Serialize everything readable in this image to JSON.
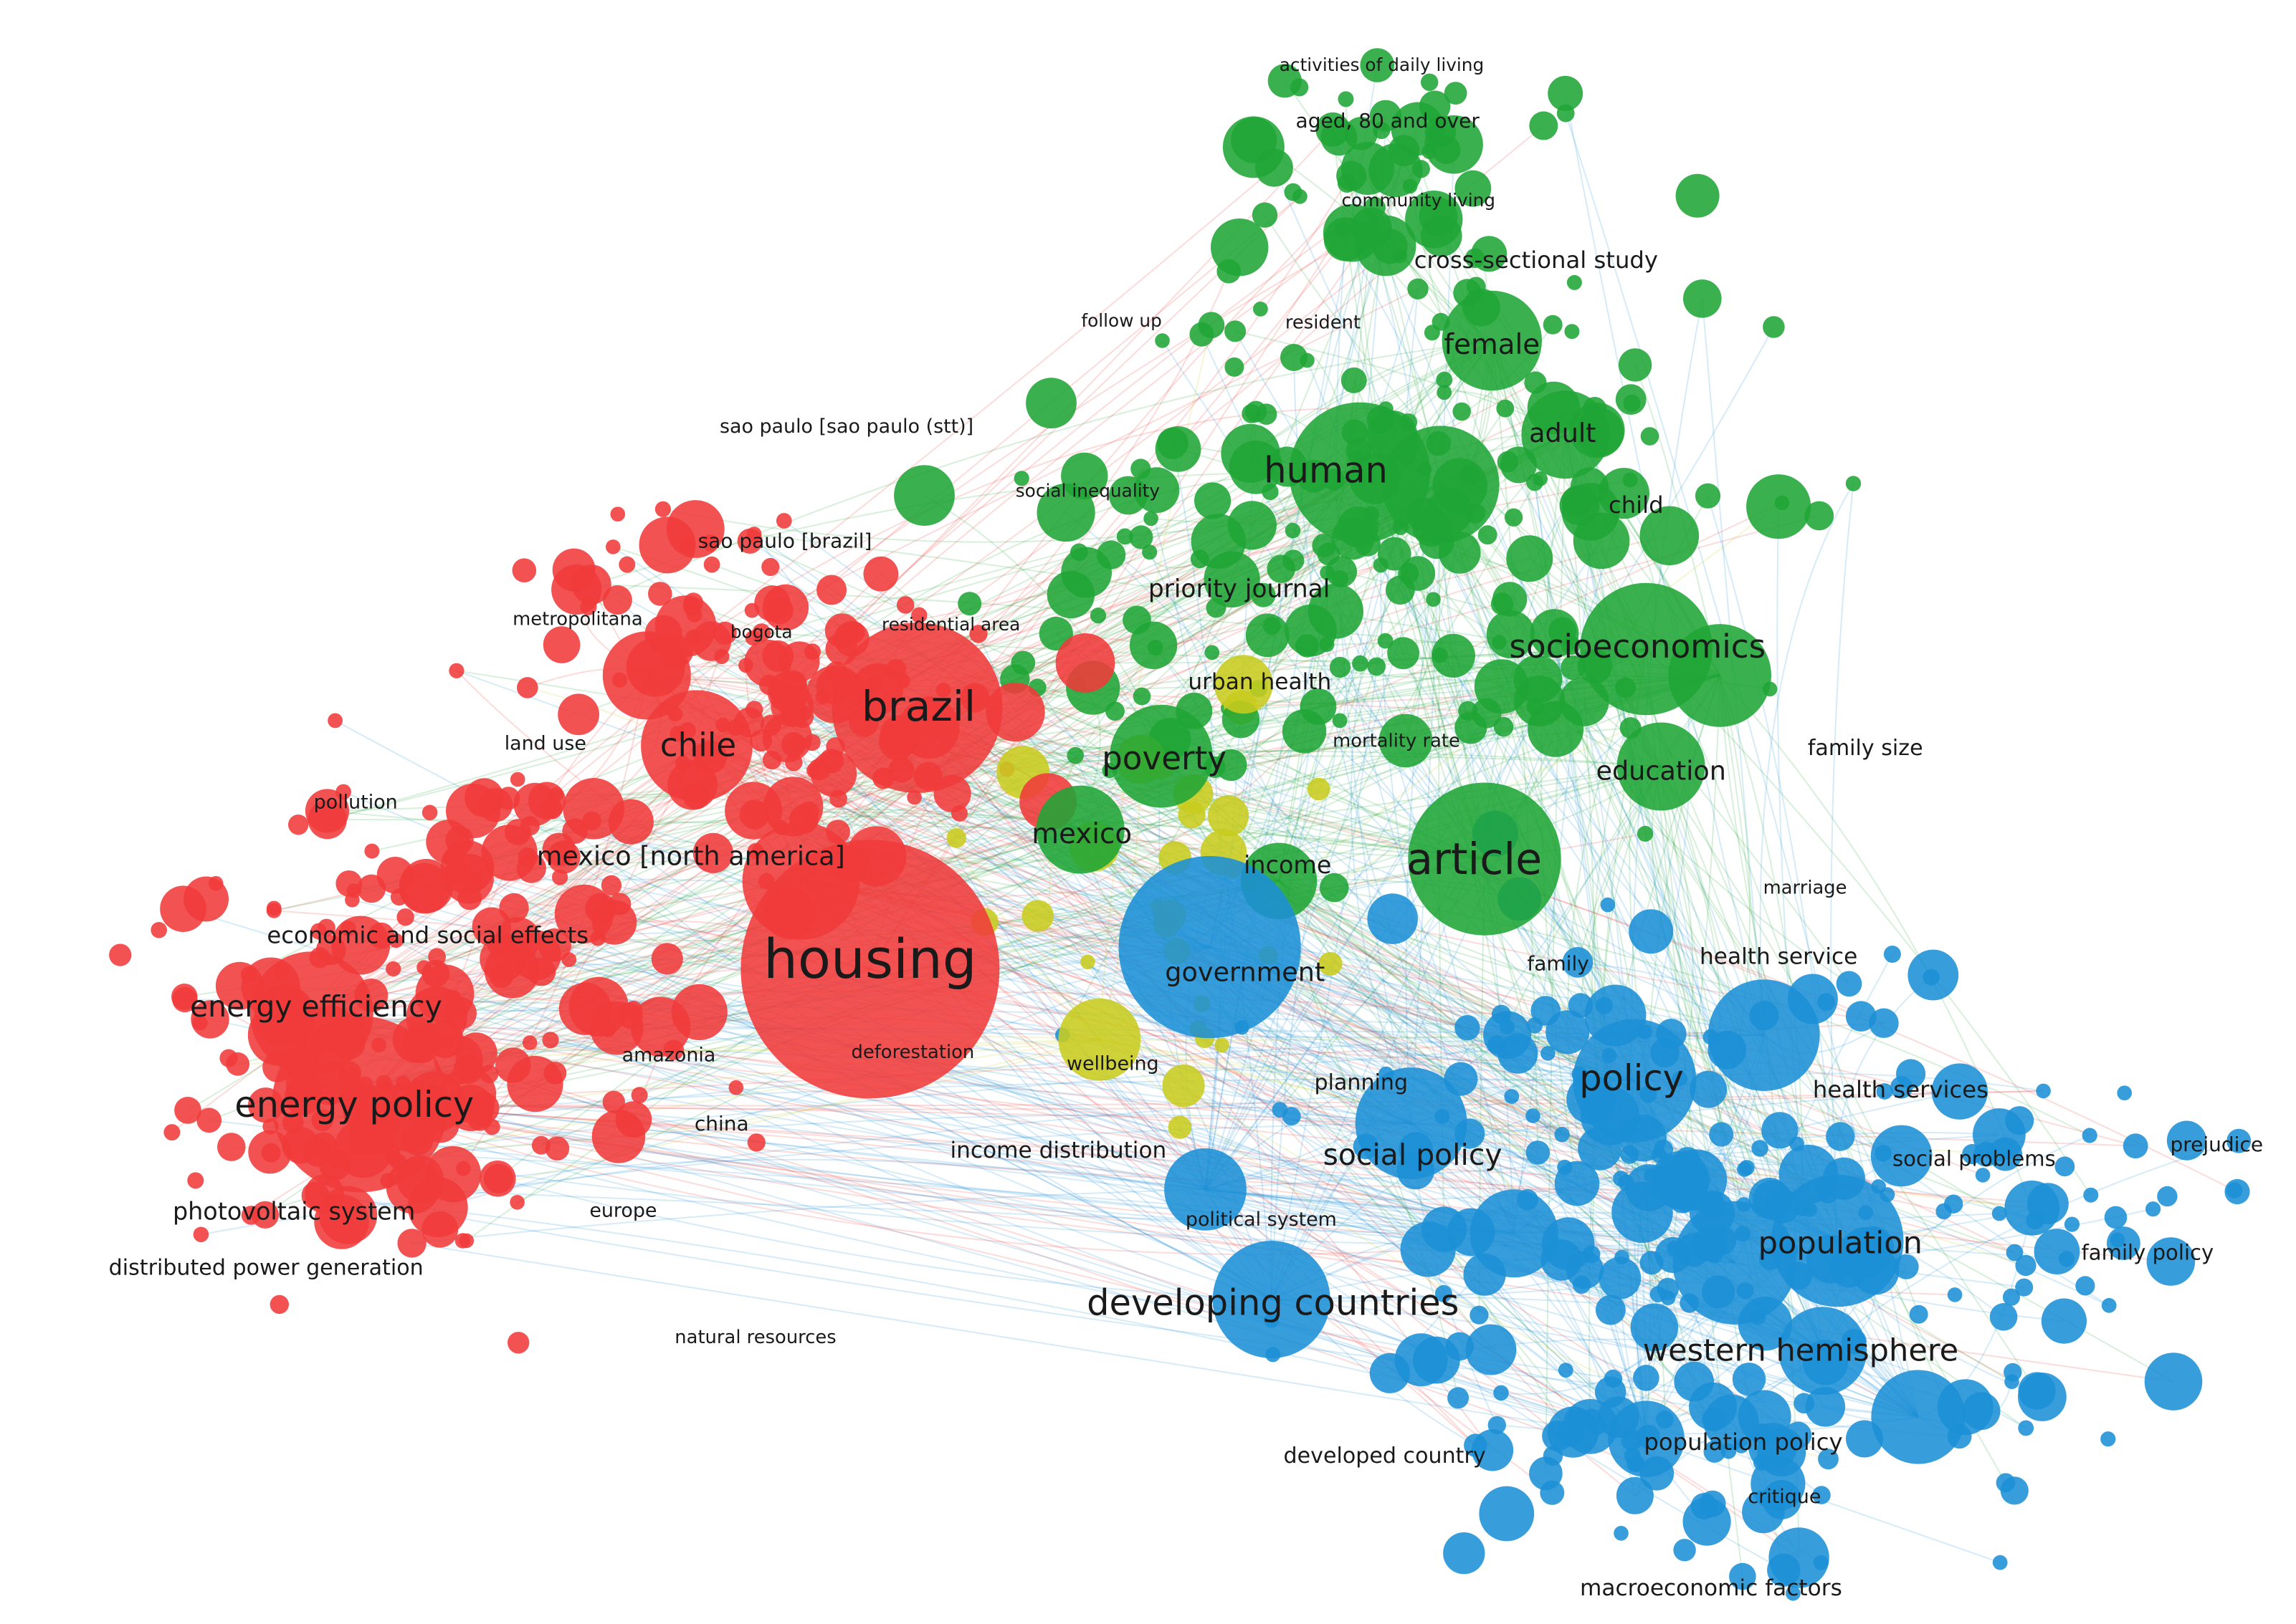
{
  "clusters": [
    {
      "id": "red",
      "color": "#f03a3a"
    },
    {
      "id": "green",
      "color": "#1fa535"
    },
    {
      "id": "blue",
      "color": "#1b8fd6"
    },
    {
      "id": "yellow",
      "color": "#c8cc1e"
    }
  ],
  "labels": [
    {
      "id": "activities-of-daily-living",
      "text": "activities of daily living",
      "cluster": "green"
    },
    {
      "id": "aged-80-and-over",
      "text": "aged, 80 and over",
      "cluster": "green"
    },
    {
      "id": "community-living",
      "text": "community living",
      "cluster": "green"
    },
    {
      "id": "cross-sectional-study",
      "text": "cross-sectional study",
      "cluster": "green"
    },
    {
      "id": "follow-up",
      "text": "follow up",
      "cluster": "green"
    },
    {
      "id": "resident",
      "text": "resident",
      "cluster": "green"
    },
    {
      "id": "female",
      "text": "female",
      "cluster": "green"
    },
    {
      "id": "sao-paulo-stt",
      "text": "sao paulo [sao paulo (stt)]",
      "cluster": "red"
    },
    {
      "id": "adult",
      "text": "adult",
      "cluster": "green"
    },
    {
      "id": "human",
      "text": "human",
      "cluster": "green"
    },
    {
      "id": "social-inequality",
      "text": "social inequality",
      "cluster": "green"
    },
    {
      "id": "child",
      "text": "child",
      "cluster": "green"
    },
    {
      "id": "sao-paulo-brazil",
      "text": "sao paulo [brazil]",
      "cluster": "red"
    },
    {
      "id": "priority-journal",
      "text": "priority journal",
      "cluster": "green"
    },
    {
      "id": "metropolitana",
      "text": "metropolitana",
      "cluster": "red"
    },
    {
      "id": "bogota",
      "text": "bogota",
      "cluster": "red"
    },
    {
      "id": "residential-area",
      "text": "residential area",
      "cluster": "red"
    },
    {
      "id": "socioeconomics",
      "text": "socioeconomics",
      "cluster": "green"
    },
    {
      "id": "urban-health",
      "text": "urban health",
      "cluster": "yellow"
    },
    {
      "id": "brazil",
      "text": "brazil",
      "cluster": "red"
    },
    {
      "id": "land-use",
      "text": "land use",
      "cluster": "red"
    },
    {
      "id": "chile",
      "text": "chile",
      "cluster": "red"
    },
    {
      "id": "mortality-rate",
      "text": "mortality rate",
      "cluster": "green"
    },
    {
      "id": "poverty",
      "text": "poverty",
      "cluster": "green"
    },
    {
      "id": "family-size",
      "text": "family size",
      "cluster": "blue"
    },
    {
      "id": "education",
      "text": "education",
      "cluster": "green"
    },
    {
      "id": "pollution",
      "text": "pollution",
      "cluster": "red"
    },
    {
      "id": "mexico-north-america",
      "text": "mexico [north america]",
      "cluster": "red"
    },
    {
      "id": "mexico",
      "text": "mexico",
      "cluster": "green"
    },
    {
      "id": "income",
      "text": "income",
      "cluster": "green"
    },
    {
      "id": "article",
      "text": "article",
      "cluster": "green"
    },
    {
      "id": "marriage",
      "text": "marriage",
      "cluster": "blue"
    },
    {
      "id": "economic-and-social-effects",
      "text": "economic and social effects",
      "cluster": "red"
    },
    {
      "id": "housing",
      "text": "housing",
      "cluster": "red"
    },
    {
      "id": "government",
      "text": "government",
      "cluster": "blue"
    },
    {
      "id": "family",
      "text": "family",
      "cluster": "blue"
    },
    {
      "id": "health-service",
      "text": "health service",
      "cluster": "blue"
    },
    {
      "id": "energy-efficiency",
      "text": "energy efficiency",
      "cluster": "red"
    },
    {
      "id": "amazonia",
      "text": "amazonia",
      "cluster": "red"
    },
    {
      "id": "deforestation",
      "text": "deforestation",
      "cluster": "red"
    },
    {
      "id": "wellbeing",
      "text": "wellbeing",
      "cluster": "yellow"
    },
    {
      "id": "planning",
      "text": "planning",
      "cluster": "blue"
    },
    {
      "id": "policy",
      "text": "policy",
      "cluster": "blue"
    },
    {
      "id": "health-services",
      "text": "health services",
      "cluster": "blue"
    },
    {
      "id": "energy-policy",
      "text": "energy policy",
      "cluster": "red"
    },
    {
      "id": "china",
      "text": "china",
      "cluster": "red"
    },
    {
      "id": "prejudice",
      "text": "prejudice",
      "cluster": "blue"
    },
    {
      "id": "income-distribution",
      "text": "income distribution",
      "cluster": "red"
    },
    {
      "id": "social-policy",
      "text": "social policy",
      "cluster": "blue"
    },
    {
      "id": "social-problems",
      "text": "social problems",
      "cluster": "blue"
    },
    {
      "id": "photovoltaic-system",
      "text": "photovoltaic system",
      "cluster": "red"
    },
    {
      "id": "europe",
      "text": "europe",
      "cluster": "red"
    },
    {
      "id": "political-system",
      "text": "political system",
      "cluster": "blue"
    },
    {
      "id": "population",
      "text": "population",
      "cluster": "blue"
    },
    {
      "id": "family-policy",
      "text": "family policy",
      "cluster": "blue"
    },
    {
      "id": "distributed-power-generation",
      "text": "distributed power generation",
      "cluster": "red"
    },
    {
      "id": "developing-countries",
      "text": "developing countries",
      "cluster": "blue"
    },
    {
      "id": "natural-resources",
      "text": "natural resources",
      "cluster": "red"
    },
    {
      "id": "western-hemisphere",
      "text": "western hemisphere",
      "cluster": "blue"
    },
    {
      "id": "population-policy",
      "text": "population policy",
      "cluster": "blue"
    },
    {
      "id": "developed-country",
      "text": "developed country",
      "cluster": "blue"
    },
    {
      "id": "critique",
      "text": "critique",
      "cluster": "blue"
    },
    {
      "id": "macroeconomic-factors",
      "text": "macroeconomic factors",
      "cluster": "blue"
    }
  ]
}
